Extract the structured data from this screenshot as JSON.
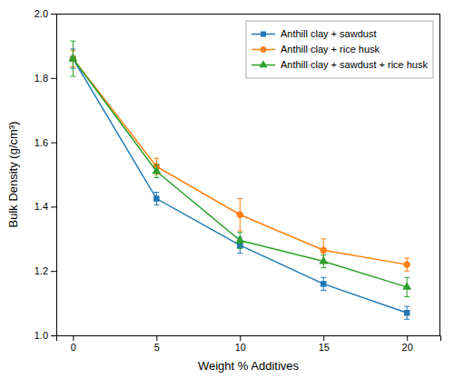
{
  "chart_data": {
    "type": "line",
    "xlabel": "Weight % Additives",
    "ylabel": "Bulk Density (g/cm³)",
    "x": [
      0,
      5,
      10,
      15,
      20
    ],
    "series": [
      {
        "name": "Anthill clay + sawdust",
        "values": [
          1.86,
          1.425,
          1.28,
          1.16,
          1.07
        ],
        "errors": [
          0.03,
          0.02,
          0.025,
          0.02,
          0.02
        ],
        "marker": "square"
      },
      {
        "name": "Anthill clay + rice husk",
        "values": [
          1.86,
          1.525,
          1.375,
          1.265,
          1.22
        ],
        "errors": [
          0.025,
          0.025,
          0.05,
          0.035,
          0.02
        ],
        "marker": "circle"
      },
      {
        "name": "Anthill clay + sawdust + rice husk",
        "values": [
          1.86,
          1.51,
          1.295,
          1.23,
          1.15
        ],
        "errors": [
          0.055,
          0.02,
          0.025,
          0.02,
          0.03
        ],
        "marker": "triangle"
      }
    ],
    "xlim": [
      -1,
      22
    ],
    "xticks": [
      0,
      5,
      10,
      15,
      20
    ],
    "ylim": [
      1,
      2
    ],
    "yticks": [
      {
        "value": 1,
        "label": "1.0"
      },
      1.2,
      1.4,
      1.6,
      1.8,
      {
        "value": 2,
        "label": "2.0"
      }
    ],
    "grid": false,
    "legend": "upper right"
  }
}
